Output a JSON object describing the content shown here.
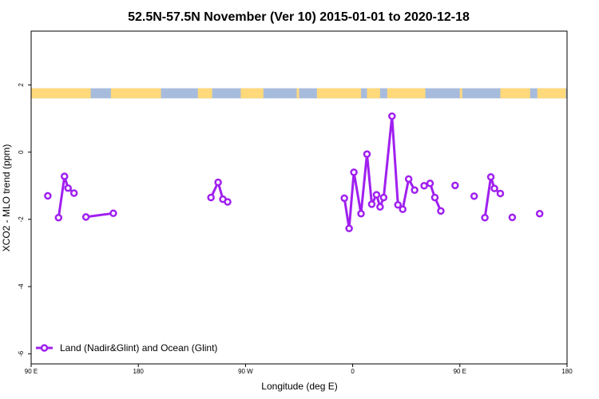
{
  "chart_data": {
    "type": "line",
    "title": "52.5N-57.5N November (Ver 10)   2015-01-01 to 2020-12-18",
    "xlabel": "Longitude (deg E)",
    "ylabel": "XCO2 - MLO trend (ppm)",
    "xlim": [
      90,
      540
    ],
    "ylim": [
      -6.3,
      3.6
    ],
    "x_ticks": [
      {
        "value": 90,
        "label": "90 E"
      },
      {
        "value": 180,
        "label": "180"
      },
      {
        "value": 270,
        "label": "90 W"
      },
      {
        "value": 360,
        "label": "0"
      },
      {
        "value": 450,
        "label": "90 E"
      },
      {
        "value": 540,
        "label": "180"
      }
    ],
    "y_ticks": [
      2,
      0,
      -2,
      -4,
      -6
    ],
    "grid": false,
    "legend_position": "bottom-left",
    "land_ocean_band": {
      "y_range": [
        1.6,
        1.9
      ],
      "land_color": "#FFD97A",
      "ocean_color": "#A7BCDD",
      "land_segments": [
        [
          90,
          140
        ],
        [
          157,
          199
        ],
        [
          230,
          242
        ],
        [
          266,
          285
        ],
        [
          313,
          315
        ],
        [
          330,
          367
        ],
        [
          372,
          383
        ],
        [
          389,
          421
        ],
        [
          450,
          452
        ],
        [
          484,
          509
        ],
        [
          515,
          539
        ]
      ]
    },
    "series": [
      {
        "name": "Land (Nadir&Glint) and Ocean (Glint)",
        "color": "#A020F0",
        "segments": [
          [
            [
              104,
              -1.3
            ]
          ],
          [
            [
              113,
              -1.95
            ],
            [
              118,
              -0.72
            ],
            [
              121,
              -1.07
            ],
            [
              126,
              -1.22
            ]
          ],
          [
            [
              136,
              -1.93
            ],
            [
              159,
              -1.82
            ]
          ],
          [
            [
              241,
              -1.35
            ],
            [
              247,
              -0.9
            ],
            [
              251,
              -1.4
            ],
            [
              255,
              -1.48
            ]
          ],
          [
            [
              353,
              -1.37
            ],
            [
              357,
              -2.27
            ],
            [
              361,
              -0.6
            ],
            [
              367,
              -1.83
            ],
            [
              372,
              -0.06
            ],
            [
              376,
              -1.55
            ],
            [
              380,
              -1.27
            ],
            [
              383,
              -1.63
            ],
            [
              386,
              -1.35
            ],
            [
              393,
              1.07
            ],
            [
              398,
              -1.57
            ],
            [
              402,
              -1.7
            ],
            [
              407,
              -0.8
            ],
            [
              412,
              -1.13
            ]
          ],
          [
            [
              420,
              -1.0
            ],
            [
              425,
              -0.93
            ],
            [
              429,
              -1.35
            ],
            [
              434,
              -1.75
            ]
          ],
          [
            [
              446,
              -0.99
            ]
          ],
          [
            [
              462,
              -1.31
            ]
          ],
          [
            [
              471,
              -1.95
            ],
            [
              476,
              -0.74
            ],
            [
              479,
              -1.08
            ],
            [
              484,
              -1.23
            ]
          ],
          [
            [
              494,
              -1.94
            ]
          ],
          [
            [
              517,
              -1.83
            ]
          ]
        ]
      }
    ]
  }
}
